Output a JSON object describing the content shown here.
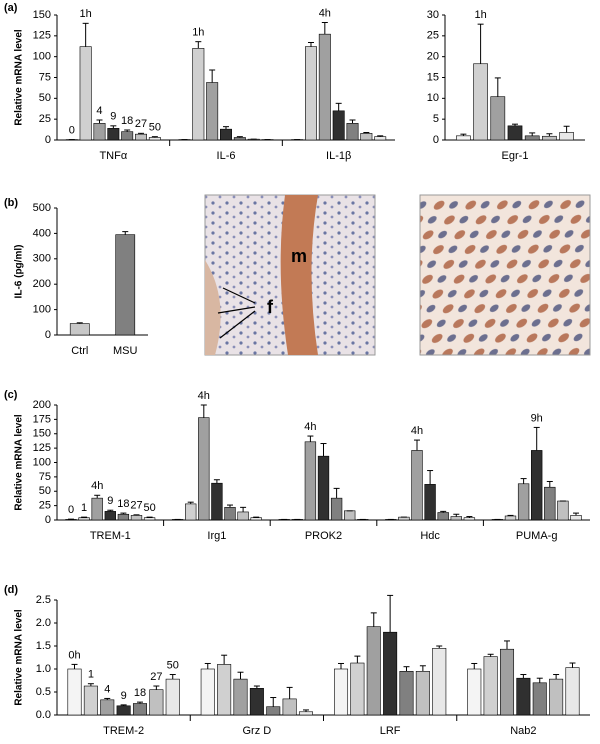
{
  "panels": [
    "(a)",
    "(b)",
    "(c)",
    "(d)"
  ],
  "image_labels": [
    "m",
    "f"
  ],
  "chart_data": [
    {
      "type": "bar",
      "ylabel": "Relative mRNA level",
      "categories": [
        "TNFα",
        "IL-6",
        "IL-1β"
      ],
      "series": [
        {
          "color": "#f4f4f4",
          "values": [
            0.5,
            0.5,
            0.5
          ],
          "errors": [
            0,
            0,
            0
          ]
        },
        {
          "color": "#d0d0d0",
          "values": [
            112,
            110,
            112
          ],
          "errors": [
            28,
            8,
            5
          ]
        },
        {
          "color": "#a0a0a0",
          "values": [
            20,
            69,
            127
          ],
          "errors": [
            4,
            15,
            14
          ]
        },
        {
          "color": "#303030",
          "values": [
            14,
            13,
            35
          ],
          "errors": [
            3,
            3,
            9
          ]
        },
        {
          "color": "#808080",
          "values": [
            10,
            3,
            20
          ],
          "errors": [
            2,
            1,
            4
          ]
        },
        {
          "color": "#c0c0c0",
          "values": [
            7,
            1,
            8
          ],
          "errors": [
            1,
            0,
            1
          ]
        },
        {
          "color": "#e8e8e8",
          "values": [
            3,
            0.5,
            4
          ],
          "errors": [
            1,
            0,
            1
          ]
        }
      ],
      "ylim": [
        0,
        150
      ],
      "yticks": [
        0,
        25,
        50,
        75,
        100,
        125,
        150
      ],
      "annotations": [
        {
          "text": "0",
          "series": 0,
          "category": 0
        },
        {
          "text": "1h",
          "series": 1,
          "category": 0
        },
        {
          "text": "4",
          "series": 2,
          "category": 0
        },
        {
          "text": "9",
          "series": 3,
          "category": 0
        },
        {
          "text": "18",
          "series": 4,
          "category": 0
        },
        {
          "text": "27",
          "series": 5,
          "category": 0
        },
        {
          "text": "50",
          "series": 6,
          "category": 0
        },
        {
          "text": "1h",
          "series": 1,
          "category": 1
        },
        {
          "text": "4h",
          "series": 2,
          "category": 2
        }
      ]
    },
    {
      "type": "bar",
      "categories": [
        "Egr-1"
      ],
      "series": [
        {
          "color": "#f4f4f4",
          "values": [
            1
          ],
          "errors": [
            0.4
          ]
        },
        {
          "color": "#d0d0d0",
          "values": [
            18.3
          ],
          "errors": [
            9.5
          ]
        },
        {
          "color": "#a0a0a0",
          "values": [
            10.4
          ],
          "errors": [
            4.5
          ]
        },
        {
          "color": "#303030",
          "values": [
            3.4
          ],
          "errors": [
            0.4
          ]
        },
        {
          "color": "#808080",
          "values": [
            1
          ],
          "errors": [
            0.7
          ]
        },
        {
          "color": "#c0c0c0",
          "values": [
            0.9
          ],
          "errors": [
            0.6
          ]
        },
        {
          "color": "#e8e8e8",
          "values": [
            1.8
          ],
          "errors": [
            1.5
          ]
        }
      ],
      "ylim": [
        0,
        30
      ],
      "yticks": [
        0,
        5,
        10,
        15,
        20,
        25,
        30
      ],
      "annotations": [
        {
          "text": "1h",
          "series": 1,
          "category": 0
        }
      ]
    },
    {
      "type": "bar",
      "ylabel": "IL-6 (pg/ml)",
      "categories": [
        "Ctrl",
        "MSU"
      ],
      "series": [
        {
          "colors": [
            "#c8c8c8",
            "#808080"
          ],
          "values": [
            45,
            395
          ],
          "errors": [
            3,
            12
          ]
        }
      ],
      "ylim": [
        0,
        500
      ],
      "yticks": [
        0,
        100,
        200,
        300,
        400,
        500
      ]
    },
    {
      "type": "bar",
      "ylabel": "Relative mRNA level",
      "categories": [
        "TREM-1",
        "Irg1",
        "PROK2",
        "Hdc",
        "PUMA-g"
      ],
      "series": [
        {
          "color": "#f4f4f4",
          "values": [
            1,
            1,
            1,
            1,
            1
          ],
          "errors": [
            0.5,
            0,
            0,
            0,
            0
          ]
        },
        {
          "color": "#d0d0d0",
          "values": [
            4,
            28,
            1,
            5,
            7
          ],
          "errors": [
            1,
            3,
            0,
            0,
            1
          ]
        },
        {
          "color": "#a0a0a0",
          "values": [
            38,
            178,
            136,
            121,
            63
          ],
          "errors": [
            5,
            22,
            10,
            18,
            9
          ]
        },
        {
          "color": "#303030",
          "values": [
            15,
            64,
            111,
            62,
            121
          ],
          "errors": [
            2,
            6,
            22,
            24,
            40
          ]
        },
        {
          "color": "#808080",
          "values": [
            10,
            22,
            38,
            13,
            57
          ],
          "errors": [
            2,
            4,
            17,
            2,
            10
          ]
        },
        {
          "color": "#c0c0c0",
          "values": [
            8,
            14,
            16,
            6,
            33
          ],
          "errors": [
            1,
            8,
            0,
            4,
            0
          ]
        },
        {
          "color": "#e8e8e8",
          "values": [
            4,
            4,
            1,
            4,
            8
          ],
          "errors": [
            1,
            1,
            0,
            2,
            4
          ]
        }
      ],
      "ylim": [
        0,
        200
      ],
      "yticks": [
        0,
        25,
        50,
        75,
        100,
        125,
        150,
        175,
        200
      ],
      "annotations": [
        {
          "text": "0",
          "series": 0,
          "category": 0
        },
        {
          "text": "1",
          "series": 1,
          "category": 0
        },
        {
          "text": "4h",
          "series": 2,
          "category": 0
        },
        {
          "text": "9",
          "series": 3,
          "category": 0
        },
        {
          "text": "18",
          "series": 4,
          "category": 0
        },
        {
          "text": "27",
          "series": 5,
          "category": 0
        },
        {
          "text": "50",
          "series": 6,
          "category": 0
        },
        {
          "text": "4h",
          "series": 2,
          "category": 1
        },
        {
          "text": "4h",
          "series": 2,
          "category": 2
        },
        {
          "text": "4h",
          "series": 2,
          "category": 3
        },
        {
          "text": "9h",
          "series": 3,
          "category": 4
        }
      ]
    },
    {
      "type": "bar",
      "ylabel": "Relative mRNA level",
      "categories": [
        "TREM-2",
        "Grz D",
        "LRF",
        "Nab2"
      ],
      "series": [
        {
          "color": "#f4f4f4",
          "values": [
            1.0,
            1.0,
            1.0,
            1.0
          ],
          "errors": [
            0.1,
            0.12,
            0.12,
            0.12
          ]
        },
        {
          "color": "#d0d0d0",
          "values": [
            0.63,
            1.1,
            1.13,
            1.27
          ],
          "errors": [
            0.05,
            0.2,
            0.15,
            0.05
          ]
        },
        {
          "color": "#a0a0a0",
          "values": [
            0.33,
            0.78,
            1.92,
            1.43
          ],
          "errors": [
            0.03,
            0.15,
            0.3,
            0.18
          ]
        },
        {
          "color": "#303030",
          "values": [
            0.2,
            0.58,
            1.8,
            0.8
          ],
          "errors": [
            0.02,
            0.05,
            0.8,
            0.08
          ]
        },
        {
          "color": "#808080",
          "values": [
            0.25,
            0.18,
            0.95,
            0.7
          ],
          "errors": [
            0.03,
            0.2,
            0.1,
            0.1
          ]
        },
        {
          "color": "#c0c0c0",
          "values": [
            0.55,
            0.35,
            0.95,
            0.78
          ],
          "errors": [
            0.08,
            0.25,
            0.12,
            0.1
          ]
        },
        {
          "color": "#e8e8e8",
          "values": [
            0.78,
            0.07,
            1.45,
            1.03
          ],
          "errors": [
            0.1,
            0.04,
            0.05,
            0.1
          ]
        }
      ],
      "ylim": [
        0,
        2.5
      ],
      "yticks": [
        {
          "value": 0,
          "label": "0.0"
        },
        0.5,
        {
          "value": 1,
          "label": "1.0"
        },
        1.5,
        {
          "value": 2,
          "label": "2.0"
        },
        2.5
      ],
      "annotations": [
        {
          "text": "0h",
          "series": 0,
          "category": 0
        },
        {
          "text": "1",
          "series": 1,
          "category": 0
        },
        {
          "text": "4",
          "series": 2,
          "category": 0
        },
        {
          "text": "9",
          "series": 3,
          "category": 0
        },
        {
          "text": "18",
          "series": 4,
          "category": 0
        },
        {
          "text": "27",
          "series": 5,
          "category": 0
        },
        {
          "text": "50",
          "series": 6,
          "category": 0
        }
      ]
    }
  ]
}
